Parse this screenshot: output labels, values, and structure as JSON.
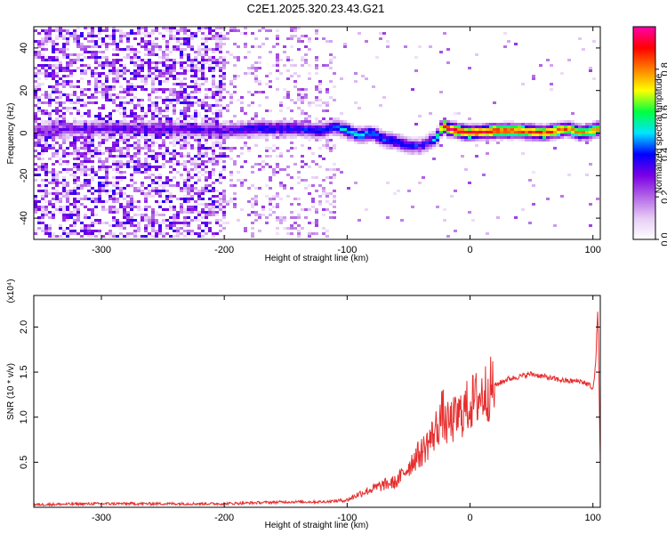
{
  "chart_data": [
    {
      "type": "heatmap",
      "title": "C2E1.2025.320.23.43.G21",
      "xlabel": "Height of straight line (km)",
      "ylabel": "Frequency (Hz)",
      "xlim": [
        -355,
        106
      ],
      "ylim": [
        -50,
        50
      ],
      "xticks": [
        -300,
        -200,
        -100,
        0,
        100
      ],
      "yticks": [
        -40,
        -20,
        0,
        20,
        40
      ],
      "colorbar": {
        "label": "Normalized spectral amplitude",
        "range": [
          0,
          1
        ],
        "ticks": [
          "0.0",
          "0.2",
          "0.4",
          "0.6",
          "0.8"
        ],
        "tick_values": [
          0,
          0.2,
          0.4,
          0.6,
          0.8
        ],
        "colors": [
          "#ffffff",
          "#e6ccf5",
          "#b366e6",
          "#7b00e6",
          "#0000ff",
          "#00e6ff",
          "#00ff40",
          "#ffff00",
          "#ff8000",
          "#ff0000",
          "#ff00aa"
        ]
      },
      "ridge": {
        "height_km": [
          -355,
          -300,
          -250,
          -200,
          -180,
          -160,
          -140,
          -120,
          -110,
          -100,
          -90,
          -80,
          -70,
          -60,
          -50,
          -40,
          -32,
          -28,
          -25,
          -22,
          -18,
          -10,
          0,
          20,
          40,
          60,
          80,
          90,
          100,
          106
        ],
        "frequency_hz": [
          1,
          2,
          2,
          1,
          2,
          2,
          2,
          1,
          3,
          1,
          -1,
          0,
          -3,
          -4,
          -6,
          -6,
          -4,
          -3,
          0,
          4,
          2,
          1,
          0,
          1,
          1,
          0,
          2,
          0,
          1,
          2
        ],
        "amplitude": [
          0.3,
          0.3,
          0.32,
          0.35,
          0.4,
          0.42,
          0.42,
          0.4,
          0.45,
          0.55,
          0.55,
          0.5,
          0.45,
          0.42,
          0.42,
          0.38,
          0.4,
          0.5,
          0.7,
          0.9,
          0.95,
          0.95,
          0.95,
          0.95,
          0.9,
          0.9,
          0.85,
          0.8,
          0.8,
          0.7
        ]
      }
    },
    {
      "type": "line",
      "title": "",
      "xlabel": "Height of straight line (km)",
      "ylabel": "SNR (10 * v/v)",
      "y_multiplier": "(x10⁴)",
      "xlim": [
        -355,
        106
      ],
      "ylim": [
        0,
        2.35
      ],
      "xticks": [
        -300,
        -200,
        -100,
        0,
        100
      ],
      "yticks": [
        0.5,
        1.0,
        1.5,
        2.0
      ],
      "ytick_labels": [
        "0.5",
        "1.0",
        "1.5",
        "2.0"
      ],
      "color": "#e62e2e",
      "series": [
        {
          "name": "SNR",
          "x": [
            -355,
            -300,
            -250,
            -200,
            -150,
            -120,
            -100,
            -90,
            -80,
            -70,
            -60,
            -50,
            -45,
            -40,
            -35,
            -30,
            -25,
            -22,
            -20,
            -15,
            -10,
            0,
            10,
            20,
            30,
            40,
            50,
            60,
            70,
            80,
            90,
            98,
            100,
            102,
            104,
            106
          ],
          "y": [
            0.03,
            0.04,
            0.04,
            0.04,
            0.06,
            0.06,
            0.08,
            0.15,
            0.2,
            0.25,
            0.28,
            0.45,
            0.55,
            0.6,
            0.7,
            0.8,
            0.95,
            1.05,
            0.9,
            0.95,
            1.0,
            1.15,
            1.25,
            1.35,
            1.42,
            1.45,
            1.48,
            1.45,
            1.42,
            1.4,
            1.4,
            1.35,
            1.3,
            1.55,
            2.2,
            0.5
          ]
        }
      ]
    }
  ]
}
